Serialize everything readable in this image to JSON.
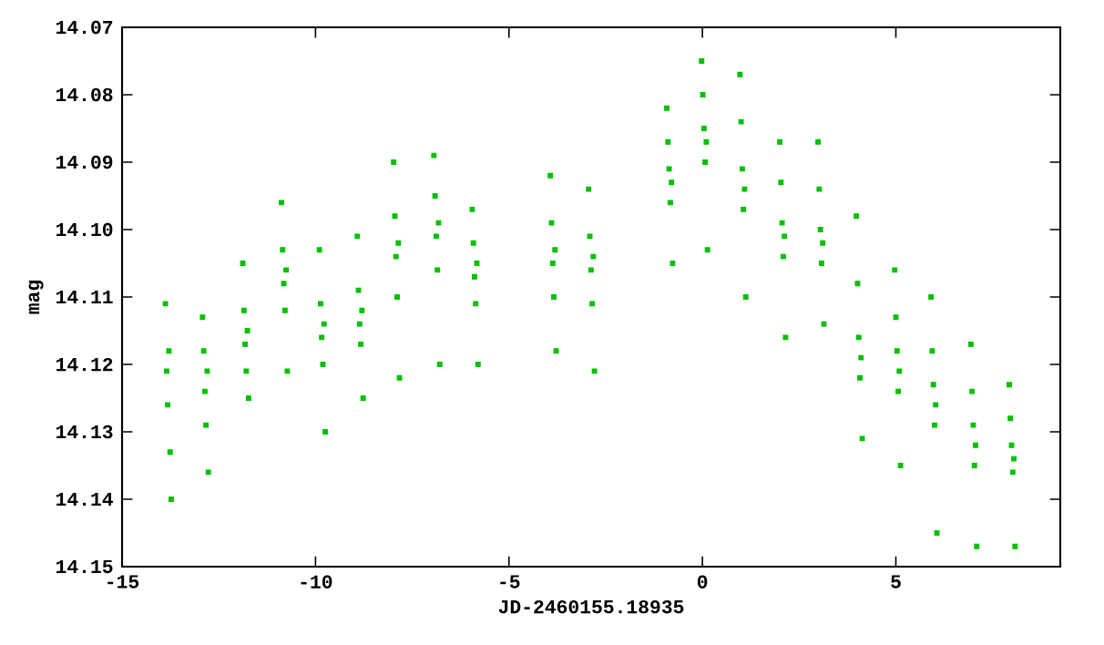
{
  "chart_data": {
    "type": "scatter",
    "xlabel": "JD-2460155.18935",
    "ylabel": "mag",
    "xlim": [
      -15,
      9.25
    ],
    "ylim": [
      14.15,
      14.07
    ],
    "xticks": [
      -15,
      -10,
      -5,
      0,
      5
    ],
    "yticks": [
      14.07,
      14.08,
      14.09,
      {
        "value": 14.1,
        "label": "14.10"
      },
      14.11,
      14.12,
      14.13,
      14.14,
      14.15
    ],
    "marker": "square",
    "series": [
      {
        "color": "#00c000",
        "x": [
          -13.88,
          -13.85,
          -13.82,
          -13.79,
          -13.76,
          -13.73,
          -12.92,
          -12.89,
          -12.86,
          -12.83,
          -12.8,
          -12.77,
          -11.88,
          -11.85,
          -11.82,
          -11.79,
          -11.76,
          -11.73,
          -10.88,
          -10.85,
          -10.82,
          -10.79,
          -10.76,
          -10.73,
          -9.9,
          -9.87,
          -9.84,
          -9.81,
          -9.78,
          -9.75,
          -8.92,
          -8.89,
          -8.86,
          -8.83,
          -8.8,
          -8.77,
          -7.98,
          -7.95,
          -7.92,
          -7.89,
          -7.86,
          -7.83,
          -6.94,
          -6.91,
          -6.88,
          -6.85,
          -6.82,
          -6.79,
          -5.95,
          -5.92,
          -5.89,
          -5.86,
          -5.83,
          -5.8,
          -3.93,
          -3.9,
          -3.87,
          -3.84,
          -3.81,
          -3.78,
          -2.94,
          -2.91,
          -2.88,
          -2.85,
          -2.82,
          -2.79,
          -0.92,
          -0.89,
          -0.86,
          -0.83,
          -0.8,
          -0.77,
          -0.02,
          0.01,
          0.04,
          0.07,
          0.1,
          0.13,
          0.97,
          1.0,
          1.03,
          1.06,
          1.09,
          1.12,
          2.0,
          2.03,
          2.06,
          2.09,
          2.12,
          2.15,
          2.99,
          3.02,
          3.05,
          3.08,
          3.11,
          3.14,
          3.98,
          4.01,
          4.04,
          4.07,
          4.1,
          4.13,
          4.97,
          5.0,
          5.03,
          5.06,
          5.09,
          5.12,
          5.91,
          5.94,
          5.97,
          6.0,
          6.03,
          6.06,
          6.94,
          6.97,
          7.0,
          7.03,
          7.06,
          7.09,
          7.93,
          7.96,
          7.99,
          8.02,
          8.05,
          8.08
        ],
        "values": [
          14.111,
          14.121,
          14.126,
          14.118,
          14.133,
          14.14,
          14.113,
          14.118,
          14.124,
          14.129,
          14.121,
          14.136,
          14.105,
          14.112,
          14.117,
          14.121,
          14.115,
          14.125,
          14.096,
          14.103,
          14.108,
          14.112,
          14.106,
          14.121,
          14.103,
          14.111,
          14.116,
          14.12,
          14.114,
          14.13,
          14.101,
          14.109,
          14.114,
          14.117,
          14.112,
          14.125,
          14.09,
          14.098,
          14.104,
          14.11,
          14.102,
          14.122,
          14.089,
          14.095,
          14.101,
          14.106,
          14.099,
          14.12,
          14.097,
          14.102,
          14.107,
          14.111,
          14.105,
          14.12,
          14.092,
          14.099,
          14.105,
          14.11,
          14.103,
          14.118,
          14.094,
          14.101,
          14.106,
          14.111,
          14.104,
          14.121,
          14.082,
          14.087,
          14.091,
          14.096,
          14.093,
          14.105,
          14.075,
          14.08,
          14.085,
          14.09,
          14.087,
          14.103,
          14.077,
          14.084,
          14.091,
          14.097,
          14.094,
          14.11,
          14.087,
          14.093,
          14.099,
          14.104,
          14.101,
          14.116,
          14.087,
          14.094,
          14.1,
          14.105,
          14.102,
          14.114,
          14.098,
          14.108,
          14.116,
          14.122,
          14.119,
          14.131,
          14.106,
          14.113,
          14.118,
          14.124,
          14.121,
          14.135,
          14.11,
          14.118,
          14.123,
          14.129,
          14.126,
          14.145,
          14.117,
          14.124,
          14.129,
          14.135,
          14.132,
          14.147,
          14.123,
          14.128,
          14.132,
          14.136,
          14.134,
          14.147
        ]
      }
    ]
  }
}
